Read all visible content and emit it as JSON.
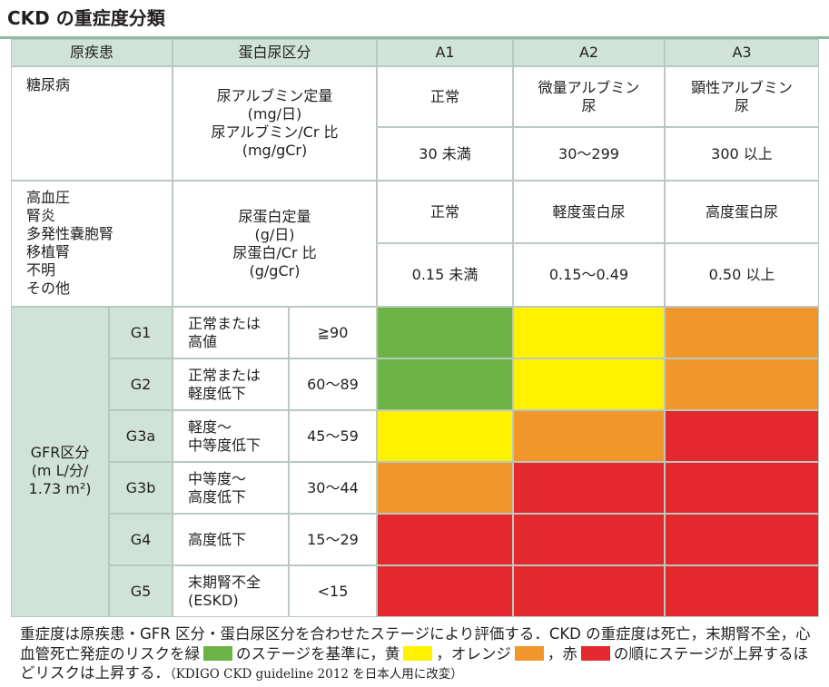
{
  "title": "CKD の重症度分類",
  "header": {
    "col1": "原疾患",
    "col2": "蛋白尿区分",
    "a1": "A1",
    "a2": "A2",
    "a3": "A3"
  },
  "diabetes": {
    "disease": "糖尿病",
    "measure_lines": [
      "尿アルブミン定量",
      "(mg/日)",
      "尿アルブミン/Cr 比",
      "(mg/gCr)"
    ],
    "a1_label": "正常",
    "a2_label_lines": [
      "微量アルブミン",
      "尿"
    ],
    "a3_label_lines": [
      "顕性アルブミン",
      "尿"
    ],
    "a1_range": "30 未満",
    "a2_range": "30〜299",
    "a3_range": "300 以上"
  },
  "other": {
    "diseases": [
      "高血圧",
      "腎炎",
      "多発性嚢胞腎",
      "移植腎",
      "不明",
      "その他"
    ],
    "measure_lines": [
      "尿蛋白定量",
      "(g/日)",
      "尿蛋白/Cr 比",
      "(g/gCr)"
    ],
    "a1_label": "正常",
    "a2_label": "軽度蛋白尿",
    "a3_label": "高度蛋白尿",
    "a1_range": "0.15 未満",
    "a2_range": "0.15〜0.49",
    "a3_range": "0.50 以上"
  },
  "gfr": {
    "label_lines": [
      "GFR区分",
      "(m L/分/",
      "1.73 m²)"
    ],
    "rows": [
      {
        "stage": "G1",
        "desc": [
          "正常または",
          "高値"
        ],
        "range": "≧90",
        "levels": [
          "green",
          "yellow",
          "orange"
        ]
      },
      {
        "stage": "G2",
        "desc": [
          "正常または",
          "軽度低下"
        ],
        "range": "60〜89",
        "levels": [
          "green",
          "yellow",
          "orange"
        ]
      },
      {
        "stage": "G3a",
        "desc": [
          "軽度〜",
          "中等度低下"
        ],
        "range": "45〜59",
        "levels": [
          "yellow",
          "orange",
          "red"
        ]
      },
      {
        "stage": "G3b",
        "desc": [
          "中等度〜",
          "高度低下"
        ],
        "range": "30〜44",
        "levels": [
          "orange",
          "red",
          "red"
        ]
      },
      {
        "stage": "G4",
        "desc": [
          "高度低下"
        ],
        "range": "15〜29",
        "levels": [
          "red",
          "red",
          "red"
        ]
      },
      {
        "stage": "G5",
        "desc": [
          "末期腎不全",
          "(ESKD)"
        ],
        "range": "<15",
        "levels": [
          "red",
          "red",
          "red"
        ]
      }
    ]
  },
  "colors": {
    "green": "#6bb345",
    "yellow": "#fff100",
    "orange": "#f0962a",
    "red": "#e4292e"
  },
  "note": {
    "part1": "重症度は原疾患・GFR 区分・蛋白尿区分を合わせたステージにより評価する．CKD の重症度は死亡，末期腎不全，心血管死亡発症のリスクを緑",
    "part2": "のステージを基準に，黄",
    "part3": "，オレンジ",
    "part4": "，赤",
    "part5": "の順にステージが上昇するほどリスクは上昇する．",
    "ref": "（KDIGO CKD guideline 2012 を日本人用に改変）"
  }
}
